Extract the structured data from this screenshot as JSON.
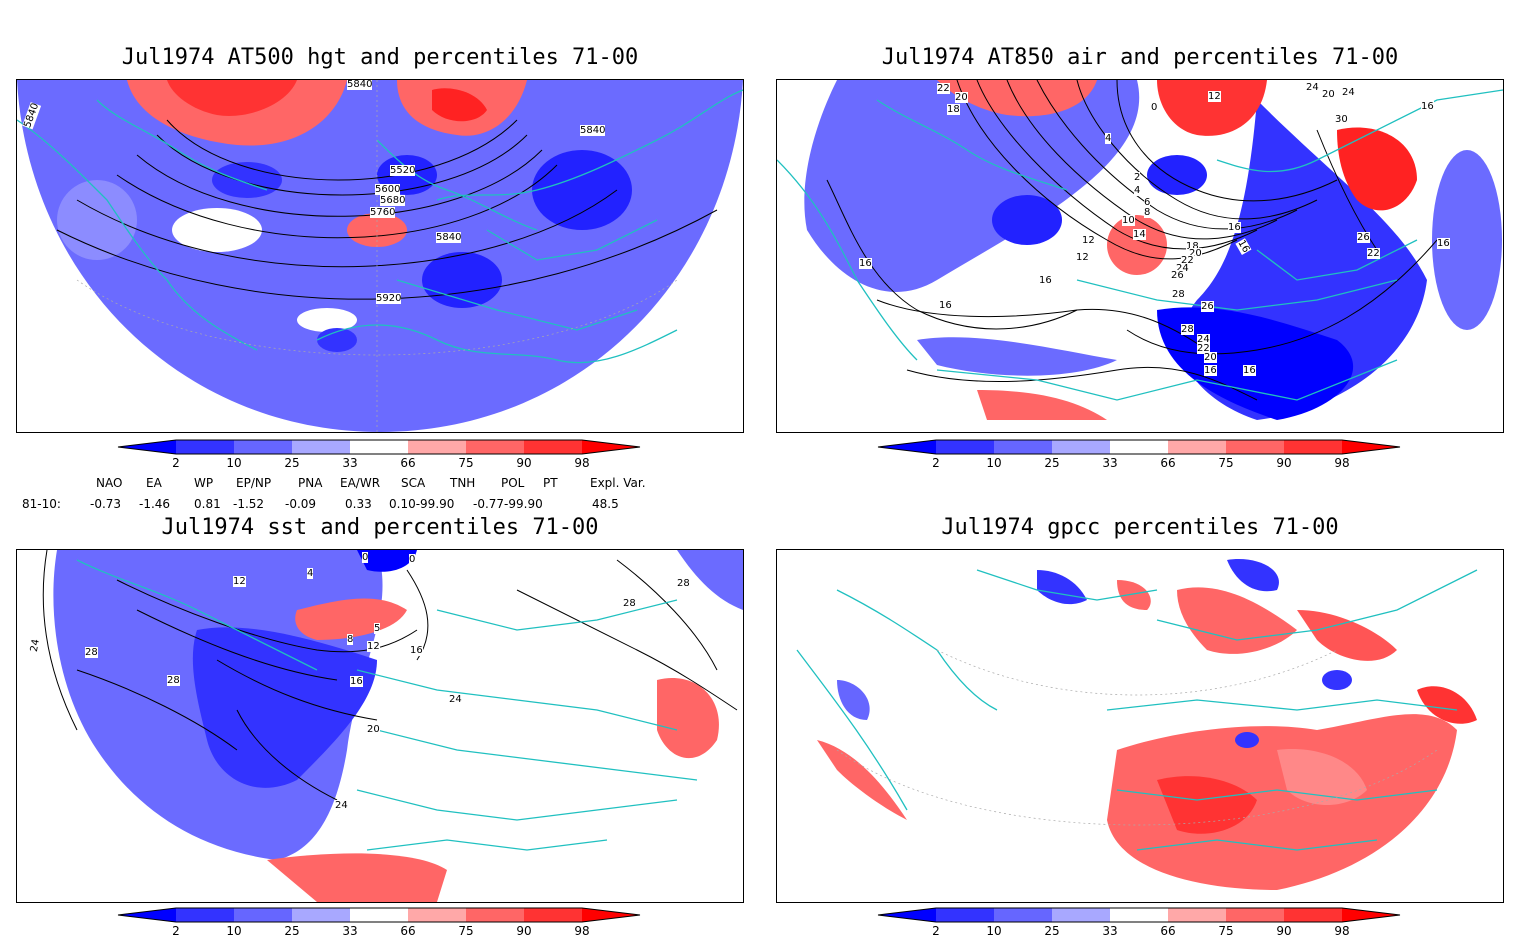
{
  "panels": [
    {
      "title": "Jul1974 AT500 hgt and percentiles 71-00",
      "contour_labels": [
        "5840",
        "5840",
        "5840",
        "5520",
        "5600",
        "5680",
        "5760",
        "5840",
        "5920"
      ]
    },
    {
      "title": "Jul1974 AT850 air and percentiles 71-00",
      "contour_labels": [
        "22",
        "20",
        "18",
        "0",
        "12",
        "24",
        "20",
        "24",
        "16",
        "30",
        "4",
        "2",
        "4",
        "6",
        "8",
        "10",
        "12",
        "12",
        "14",
        "16",
        "16",
        "18",
        "20",
        "22",
        "24",
        "26",
        "28",
        "26",
        "22",
        "16",
        "16",
        "16",
        "16",
        "28",
        "26",
        "24",
        "22",
        "20",
        "16",
        "16"
      ]
    },
    {
      "title": "Jul1974 sst and percentiles 71-00",
      "contour_labels": [
        "0",
        "4",
        "0",
        "12",
        "8",
        "5",
        "12",
        "16",
        "16",
        "20",
        "24",
        "24",
        "28",
        "28",
        "28",
        "24",
        "28"
      ]
    },
    {
      "title": "Jul1974 gpcc percentiles 71-00",
      "contour_labels": []
    }
  ],
  "colorbar": {
    "labels": [
      "2",
      "10",
      "25",
      "33",
      "66",
      "75",
      "90",
      "98"
    ],
    "colors": [
      "#0000ff",
      "#3333ff",
      "#6666ff",
      "#a8a8ff",
      "#ffffff",
      "#ffa8a8",
      "#ff6666",
      "#ff3333",
      "#ff0000"
    ]
  },
  "indices": {
    "headers": [
      "NAO",
      "EA",
      "WP",
      "EP/NP",
      "PNA",
      "EA/WR",
      "SCA",
      "TNH",
      "POL",
      "PT",
      "Expl. Var."
    ],
    "row_label": "81-10:",
    "values": [
      "-0.73",
      "-1.46",
      "0.81",
      "-1.52",
      "-0.09",
      "0.33",
      "0.10-99.90",
      "-0.77-99.90",
      "48.5"
    ]
  }
}
